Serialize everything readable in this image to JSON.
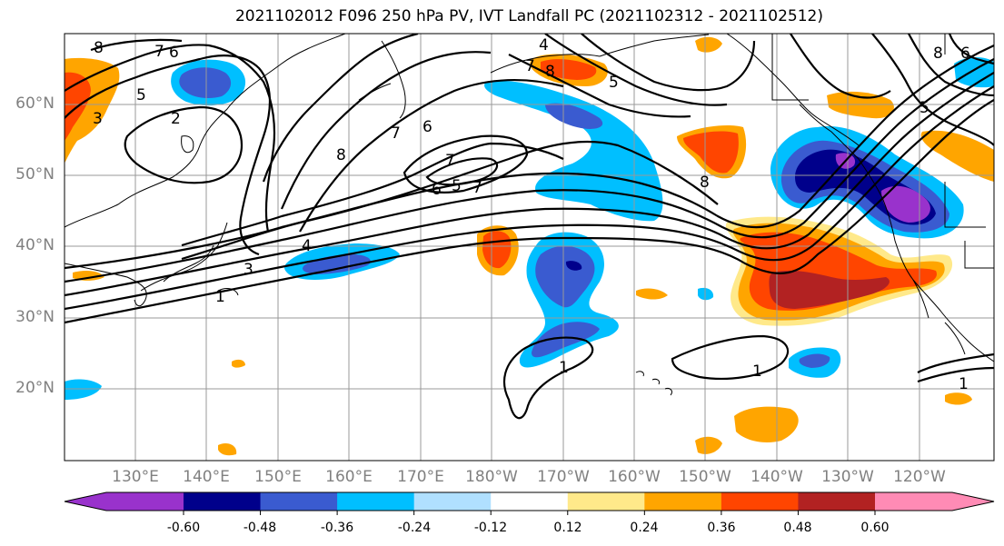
{
  "title": "2021102012 F096 250 hPa PV, IVT Landfall PC (2021102312 - 2021102512)",
  "lat_labels": [
    "60°N",
    "50°N",
    "40°N",
    "30°N",
    "20°N"
  ],
  "lon_labels": [
    "130°E",
    "140°E",
    "150°E",
    "160°E",
    "170°E",
    "180°W",
    "170°W",
    "160°W",
    "150°W",
    "140°W",
    "130°W",
    "120°W"
  ],
  "pv_contour_labels": [
    "8",
    "7",
    "6",
    "5",
    "4",
    "3",
    "2",
    "1"
  ],
  "colorbar": {
    "colors": [
      "#9932CC",
      "#00008B",
      "#3A5BD0",
      "#00BFFF",
      "#B0E0FF",
      "#FFFFFF",
      "#FFE98A",
      "#FFA500",
      "#FF4500",
      "#B22222",
      "#FF8BB5"
    ],
    "tick_labels": [
      "-0.60",
      "-0.48",
      "-0.36",
      "-0.24",
      "-0.12",
      "0.12",
      "0.24",
      "0.36",
      "0.48",
      "0.60"
    ]
  }
}
